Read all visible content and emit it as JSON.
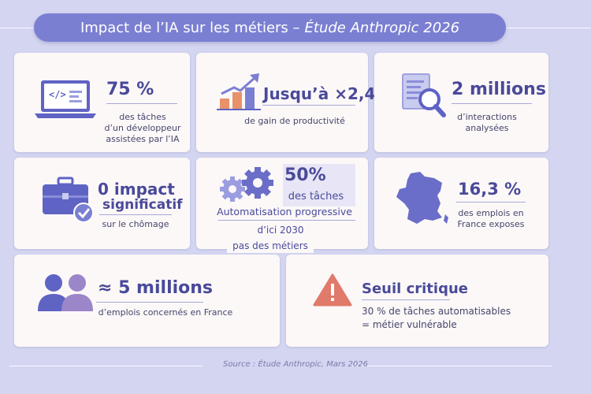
{
  "title": {
    "main": "Impact de l’IA sur les métiers –",
    "italic": "Étude Anthropic 2026"
  },
  "cards": {
    "dev": {
      "value": "75 %",
      "line1": "des tâches",
      "line2": "d’un développeur",
      "line3": "assistées par l’IA",
      "icon": "laptop-code-icon"
    },
    "productivity": {
      "value": "Jusqu’à ×2,4",
      "line1": "de gain de productivité",
      "icon": "bar-chart-growth-icon"
    },
    "interactions": {
      "value": "2 millions",
      "line1": "d’interactions",
      "line2": "analysées",
      "icon": "document-search-icon"
    },
    "unemployment": {
      "value": "0 impact",
      "value2": "significatif",
      "line1": "sur le chômage",
      "icon": "briefcase-check-icon"
    },
    "automation": {
      "value": "50%",
      "line1": "des tâches",
      "line2": "Automatisation progressive",
      "line3": "d’ici 2030",
      "line4": "pas des métiers",
      "icon": "gears-icon"
    },
    "france": {
      "value": "16,3 %",
      "line1": "des emplois en",
      "line2": "France exposes",
      "icon": "france-map-icon"
    },
    "jobs": {
      "value": "≈ 5 millions",
      "line1": "d’emplois concernés en France",
      "icon": "people-icon"
    },
    "threshold": {
      "value": "Seuil critique",
      "line1": "30 % de tâches automatisables",
      "line2": "= métier vulnérable",
      "icon": "warning-icon"
    }
  },
  "source": "Source : Étude Anthropic, Mars 2026",
  "colors": {
    "accent": "#7b7fd2",
    "background": "#d3d5f1",
    "card": "#fcf8f8",
    "text": "#4a4a9a",
    "warning": "#e07a6a",
    "growth": "#e8926a"
  }
}
